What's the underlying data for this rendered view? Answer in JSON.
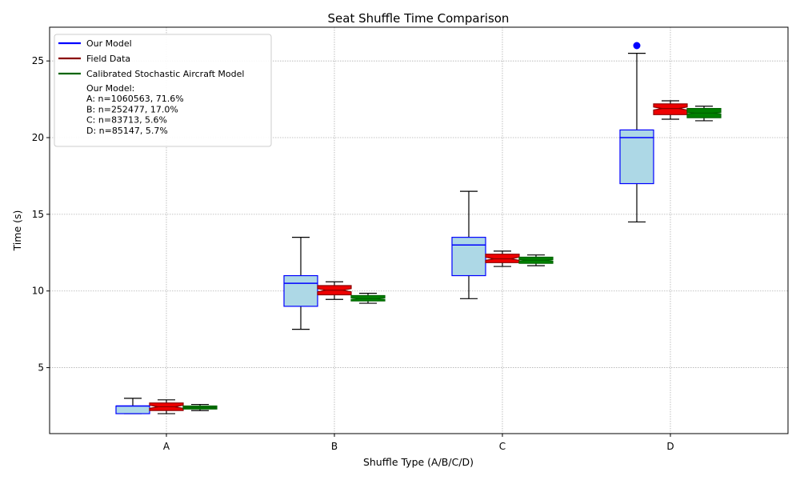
{
  "chart_data": {
    "type": "boxplot",
    "title": "Seat Shuffle Time Comparison",
    "xlabel": "Shuffle Type (A/B/C/D)",
    "ylabel": "Time (s)",
    "categories": [
      "A",
      "B",
      "C",
      "D"
    ],
    "ylim": [
      0.7,
      27.2
    ],
    "yticks": [
      5,
      10,
      15,
      20,
      25
    ],
    "grid": true,
    "legend_position": "upper-left",
    "series": [
      {
        "name": "Our Model",
        "color": "#0000ff",
        "fill": "#add8e6",
        "notch": false,
        "boxes": [
          {
            "whislo": 2.0,
            "q1": 2.0,
            "med": 2.5,
            "q3": 2.5,
            "whishi": 3.0,
            "fliers": []
          },
          {
            "whislo": 7.5,
            "q1": 9.0,
            "med": 10.5,
            "q3": 11.0,
            "whishi": 13.5,
            "fliers": []
          },
          {
            "whislo": 9.5,
            "q1": 11.0,
            "med": 13.0,
            "q3": 13.5,
            "whishi": 16.5,
            "fliers": []
          },
          {
            "whislo": 14.5,
            "q1": 17.0,
            "med": 20.0,
            "q3": 20.5,
            "whishi": 25.5,
            "fliers": [
              26.0
            ]
          }
        ]
      },
      {
        "name": "Field Data",
        "color": "#8b0000",
        "fill": "#ee0000",
        "notch": true,
        "boxes": [
          {
            "whislo": 2.0,
            "q1": 2.2,
            "med": 2.45,
            "q3": 2.7,
            "whishi": 2.9,
            "notchlo": 2.35,
            "notchhi": 2.55
          },
          {
            "whislo": 9.45,
            "q1": 9.75,
            "med": 10.05,
            "q3": 10.35,
            "whishi": 10.6,
            "notchlo": 9.95,
            "notchhi": 10.15
          },
          {
            "whislo": 11.6,
            "q1": 11.85,
            "med": 12.1,
            "q3": 12.4,
            "whishi": 12.6,
            "notchlo": 12.0,
            "notchhi": 12.2
          },
          {
            "whislo": 21.2,
            "q1": 21.5,
            "med": 21.9,
            "q3": 22.2,
            "whishi": 22.4,
            "notchlo": 21.8,
            "notchhi": 22.0
          }
        ]
      },
      {
        "name": "Calibrated Stochastic Aircraft Model",
        "color": "#006400",
        "fill": "#008000",
        "notch": true,
        "boxes": [
          {
            "whislo": 2.2,
            "q1": 2.3,
            "med": 2.4,
            "q3": 2.5,
            "whishi": 2.6,
            "notchlo": 2.37,
            "notchhi": 2.43
          },
          {
            "whislo": 9.2,
            "q1": 9.35,
            "med": 9.5,
            "q3": 9.7,
            "whishi": 9.85,
            "notchlo": 9.45,
            "notchhi": 9.55
          },
          {
            "whislo": 11.65,
            "q1": 11.8,
            "med": 12.0,
            "q3": 12.2,
            "whishi": 12.35,
            "notchlo": 11.95,
            "notchhi": 12.05
          },
          {
            "whislo": 21.1,
            "q1": 21.3,
            "med": 21.6,
            "q3": 21.9,
            "whishi": 22.05,
            "notchlo": 21.55,
            "notchhi": 21.65
          }
        ]
      }
    ],
    "legend": {
      "entries": [
        "Our Model",
        "Field Data",
        "Calibrated Stochastic Aircraft Model"
      ],
      "note_lines": [
        "Our Model:",
        "A: n=1060563, 71.6%",
        "B: n=252477, 17.0%",
        "C: n=83713, 5.6%",
        "D: n=85147, 5.7%"
      ]
    }
  }
}
